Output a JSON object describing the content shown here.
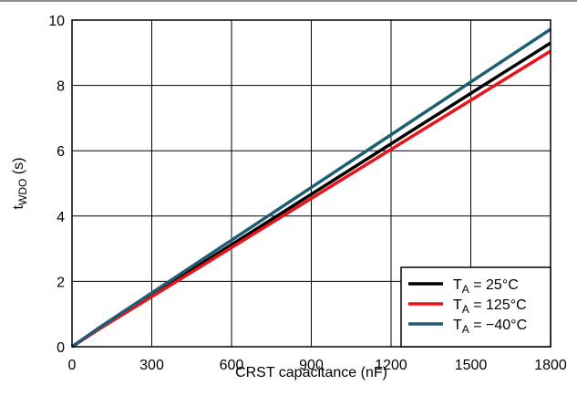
{
  "chart_data": {
    "type": "line",
    "title": "",
    "xlabel": "CRST capacitance (nF)",
    "ylabel": {
      "main": "t",
      "sub": "WDO",
      "unit": " (s)"
    },
    "xlim": [
      0,
      1800
    ],
    "ylim": [
      0,
      10
    ],
    "xticks": [
      "0",
      "300",
      "600",
      "900",
      "1200",
      "1500",
      "1800"
    ],
    "yticks": [
      "0",
      "2",
      "4",
      "6",
      "8",
      "10"
    ],
    "grid": true,
    "legend_position": "bottom-right",
    "series": [
      {
        "name": {
          "main": "T",
          "sub": "A",
          "rest": " = 25°C"
        },
        "color": "#000000",
        "x": [
          0,
          100,
          1800
        ],
        "y": [
          0,
          0.55,
          9.3
        ]
      },
      {
        "name": {
          "main": "T",
          "sub": "A",
          "rest": " = 125°C"
        },
        "color": "#e8141b",
        "x": [
          0,
          100,
          1800
        ],
        "y": [
          0,
          0.53,
          9.05
        ]
      },
      {
        "name": {
          "main": "T",
          "sub": "A",
          "rest": " = −40°C"
        },
        "color": "#1d5e72",
        "x": [
          0,
          100,
          1800
        ],
        "y": [
          0,
          0.57,
          9.72
        ]
      }
    ]
  }
}
